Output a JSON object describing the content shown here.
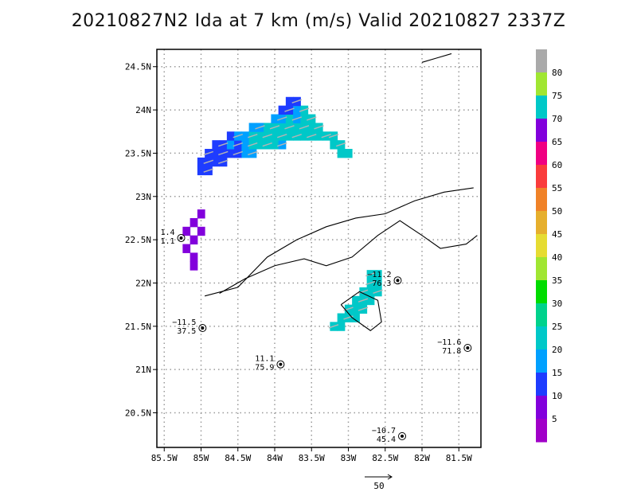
{
  "title": "20210827N2 Ida at 7 km (m/s) Valid 20210827 2337Z",
  "chart_data": {
    "type": "heatmap",
    "title": "20210827N2 Ida at 7 km (m/s) Valid 20210827 2337Z",
    "xlim": [
      -85.6,
      -81.2
    ],
    "ylim": [
      20.1,
      24.7
    ],
    "x_ticks": [
      {
        "value": -85.5,
        "label": "85.5W"
      },
      {
        "value": -85,
        "label": "85W"
      },
      {
        "value": -84.5,
        "label": "84.5W"
      },
      {
        "value": -84,
        "label": "84W"
      },
      {
        "value": -83.5,
        "label": "83.5W"
      },
      {
        "value": -83,
        "label": "83W"
      },
      {
        "value": -82.5,
        "label": "82.5W"
      },
      {
        "value": -82,
        "label": "82W"
      },
      {
        "value": -81.5,
        "label": "81.5W"
      }
    ],
    "y_ticks": [
      {
        "value": 20.5,
        "label": "20.5N"
      },
      {
        "value": 21,
        "label": "21N"
      },
      {
        "value": 21.5,
        "label": "21.5N"
      },
      {
        "value": 22,
        "label": "22N"
      },
      {
        "value": 22.5,
        "label": "22.5N"
      },
      {
        "value": 23,
        "label": "23N"
      },
      {
        "value": 23.5,
        "label": "23.5N"
      },
      {
        "value": 24,
        "label": "24N"
      },
      {
        "value": 24.5,
        "label": "24.5N"
      }
    ],
    "grid": true,
    "colorbar": {
      "labels": [
        "5",
        "10",
        "15",
        "20",
        "25",
        "30",
        "35",
        "40",
        "45",
        "50",
        "55",
        "60",
        "65",
        "70",
        "75",
        "80"
      ],
      "colors": [
        "#a000c8",
        "#8200dc",
        "#1e3cff",
        "#00a0ff",
        "#00c8c8",
        "#00d28c",
        "#00dc00",
        "#a0e632",
        "#e6dc32",
        "#e6af2d",
        "#f08228",
        "#fa3c3c",
        "#f00082",
        "#8200dc",
        "#00c8c8",
        "#a0e632",
        "#aaaaaa"
      ]
    },
    "observations": [
      {
        "lon": -85.27,
        "lat": 22.52,
        "top": "1.4",
        "bottom": "1.1"
      },
      {
        "lon": -84.98,
        "lat": 21.48,
        "top": "−11.5",
        "bottom": "37.5"
      },
      {
        "lon": -83.92,
        "lat": 21.06,
        "top": "11.1",
        "bottom": "75.9"
      },
      {
        "lon": -82.33,
        "lat": 22.03,
        "top": "−11.2",
        "bottom": "76.3"
      },
      {
        "lon": -81.38,
        "lat": 21.25,
        "top": "−11.6",
        "bottom": "71.8"
      },
      {
        "lon": -82.27,
        "lat": 20.23,
        "top": "−10.7",
        "bottom": "45.4"
      }
    ],
    "reference_vector": "50",
    "regions": [
      {
        "name": "north-band",
        "cells": [
          [
            -84.9,
            23.5,
            10
          ],
          [
            -84.8,
            23.5,
            10
          ],
          [
            -84.7,
            23.5,
            10
          ],
          [
            -84.6,
            23.5,
            10
          ],
          [
            -84.5,
            23.5,
            10
          ],
          [
            -84.4,
            23.5,
            15
          ],
          [
            -84.3,
            23.5,
            15
          ],
          [
            -84.8,
            23.6,
            10
          ],
          [
            -84.7,
            23.6,
            10
          ],
          [
            -84.6,
            23.6,
            15
          ],
          [
            -84.5,
            23.6,
            10
          ],
          [
            -84.4,
            23.6,
            15
          ],
          [
            -84.3,
            23.6,
            20
          ],
          [
            -84.2,
            23.6,
            20
          ],
          [
            -84.1,
            23.6,
            20
          ],
          [
            -84.0,
            23.6,
            20
          ],
          [
            -83.9,
            23.6,
            15
          ],
          [
            -84.6,
            23.7,
            10
          ],
          [
            -84.5,
            23.7,
            15
          ],
          [
            -84.4,
            23.7,
            15
          ],
          [
            -84.3,
            23.7,
            20
          ],
          [
            -84.2,
            23.7,
            20
          ],
          [
            -84.1,
            23.7,
            20
          ],
          [
            -84.0,
            23.7,
            20
          ],
          [
            -83.9,
            23.7,
            20
          ],
          [
            -83.8,
            23.7,
            20
          ],
          [
            -83.7,
            23.7,
            20
          ],
          [
            -83.6,
            23.7,
            20
          ],
          [
            -83.5,
            23.7,
            20
          ],
          [
            -83.4,
            23.7,
            20
          ],
          [
            -83.3,
            23.7,
            22
          ],
          [
            -84.3,
            23.8,
            15
          ],
          [
            -84.2,
            23.8,
            15
          ],
          [
            -84.1,
            23.8,
            20
          ],
          [
            -84.0,
            23.8,
            20
          ],
          [
            -83.9,
            23.8,
            20
          ],
          [
            -83.8,
            23.8,
            20
          ],
          [
            -83.7,
            23.8,
            20
          ],
          [
            -83.6,
            23.8,
            20
          ],
          [
            -83.5,
            23.8,
            20
          ],
          [
            -83.4,
            23.8,
            20
          ],
          [
            -84.0,
            23.9,
            15
          ],
          [
            -83.9,
            23.9,
            15
          ],
          [
            -83.8,
            23.9,
            20
          ],
          [
            -83.7,
            23.9,
            15
          ],
          [
            -83.6,
            23.9,
            20
          ],
          [
            -83.5,
            23.9,
            20
          ],
          [
            -83.9,
            24.0,
            10
          ],
          [
            -83.8,
            24.0,
            10
          ],
          [
            -83.7,
            24.0,
            15
          ],
          [
            -83.6,
            24.0,
            20
          ],
          [
            -83.8,
            24.1,
            10
          ],
          [
            -83.7,
            24.1,
            10
          ],
          [
            -85.0,
            23.4,
            10
          ],
          [
            -84.9,
            23.4,
            10
          ],
          [
            -84.8,
            23.4,
            10
          ],
          [
            -84.7,
            23.4,
            10
          ],
          [
            -85.0,
            23.3,
            10
          ],
          [
            -84.9,
            23.3,
            10
          ],
          [
            -83.2,
            23.6,
            22
          ],
          [
            -83.1,
            23.6,
            22
          ],
          [
            -83.0,
            23.5,
            22
          ],
          [
            -83.2,
            23.7,
            20
          ],
          [
            -83.1,
            23.5,
            20
          ]
        ]
      },
      {
        "name": "west-blob",
        "cells": [
          [
            -85.2,
            22.6,
            5
          ],
          [
            -85.1,
            22.7,
            5
          ],
          [
            -85.0,
            22.6,
            5
          ],
          [
            -85.1,
            22.5,
            5
          ],
          [
            -85.2,
            22.4,
            5
          ],
          [
            -85.1,
            22.3,
            5
          ],
          [
            -85.1,
            22.2,
            5
          ],
          [
            -85.0,
            22.8,
            5
          ]
        ]
      },
      {
        "name": "south-band",
        "cells": [
          [
            -82.7,
            22.0,
            20
          ],
          [
            -82.6,
            22.0,
            20
          ],
          [
            -82.8,
            21.9,
            20
          ],
          [
            -82.7,
            21.9,
            20
          ],
          [
            -82.6,
            21.9,
            20
          ],
          [
            -82.9,
            21.8,
            20
          ],
          [
            -82.8,
            21.8,
            20
          ],
          [
            -82.7,
            21.8,
            22
          ],
          [
            -83.0,
            21.7,
            20
          ],
          [
            -82.9,
            21.7,
            20
          ],
          [
            -82.8,
            21.7,
            20
          ],
          [
            -83.1,
            21.6,
            20
          ],
          [
            -83.0,
            21.6,
            20
          ],
          [
            -82.9,
            21.6,
            22
          ],
          [
            -83.2,
            21.5,
            20
          ],
          [
            -83.1,
            21.5,
            20
          ],
          [
            -82.7,
            22.1,
            20
          ],
          [
            -82.6,
            22.1,
            20
          ]
        ]
      }
    ]
  }
}
